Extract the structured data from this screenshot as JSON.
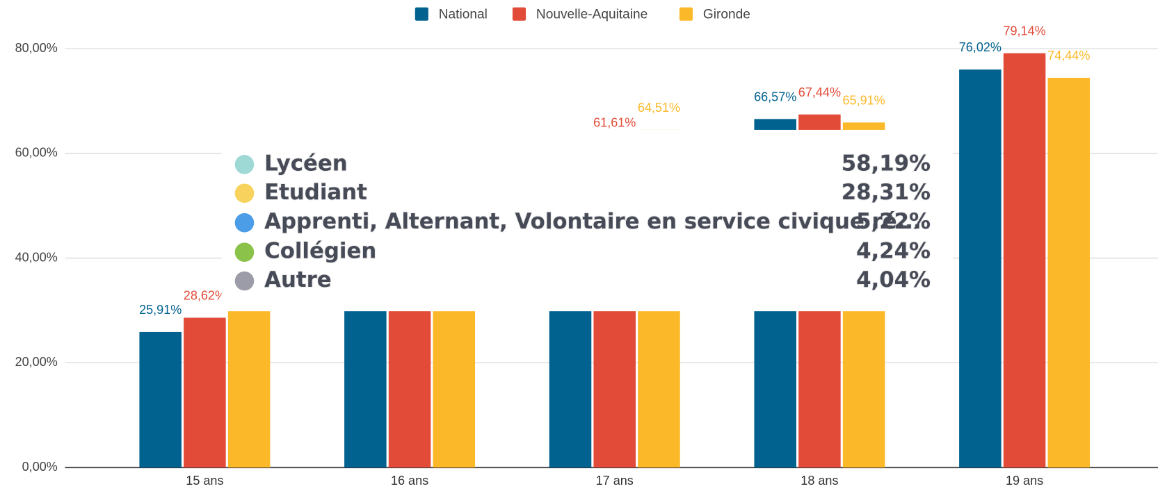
{
  "chart_data": {
    "type": "bar",
    "categories": [
      "15 ans",
      "16 ans",
      "17 ans",
      "18 ans",
      "19 ans"
    ],
    "series": [
      {
        "name": "National",
        "color": "#01628f",
        "values": [
          25.91,
          45,
          58,
          66.57,
          76.02
        ],
        "value_labels": [
          "25,91%",
          null,
          null,
          "66,57%",
          "76,02%"
        ]
      },
      {
        "name": "Nouvelle-Aquitaine",
        "color": "#e14b37",
        "values": [
          28.62,
          47,
          61.61,
          67.44,
          79.14
        ],
        "value_labels": [
          "28,62%",
          null,
          "61,61%",
          "67,44%",
          "79,14%"
        ]
      },
      {
        "name": "Gironde",
        "color": "#fbb829",
        "values": [
          31,
          50,
          64.51,
          65.91,
          74.44
        ],
        "value_labels": [
          null,
          null,
          "64,51%",
          "65,91%",
          "74,44%"
        ]
      }
    ],
    "ylim": [
      0,
      80
    ],
    "yticks": [
      {
        "value": 0,
        "label": "0,00%"
      },
      {
        "value": 20,
        "label": "20,00%"
      },
      {
        "value": 40,
        "label": "40,00%"
      },
      {
        "value": 60,
        "label": "60,00%"
      },
      {
        "value": 80,
        "label": "80,00%"
      }
    ],
    "grid": true,
    "legend": "top"
  },
  "overlay": {
    "items": [
      {
        "label": "Lycéen",
        "value": "58,19%",
        "color": "#9ed9d6"
      },
      {
        "label": "Etudiant",
        "value": "28,31%",
        "color": "#f7d35e"
      },
      {
        "label": "Apprenti, Alternant, Volontaire en service civique ré...",
        "value": "5,22%",
        "color": "#4a9de6"
      },
      {
        "label": "Collégien",
        "value": "4,24%",
        "color": "#8bc34a"
      },
      {
        "label": "Autre",
        "value": "4,04%",
        "color": "#9b9ca8"
      }
    ]
  }
}
